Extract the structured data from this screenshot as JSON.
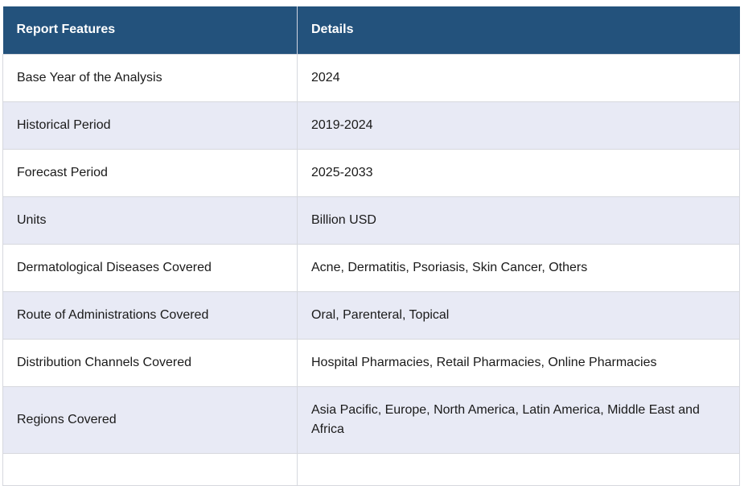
{
  "table": {
    "headers": [
      "Report Features",
      "Details"
    ],
    "rows": [
      [
        "Base Year of the Analysis",
        "2024"
      ],
      [
        "Historical Period",
        "2019-2024"
      ],
      [
        "Forecast Period",
        "2025-2033"
      ],
      [
        "Units",
        "Billion USD"
      ],
      [
        "Dermatological Diseases Covered",
        "Acne, Dermatitis, Psoriasis, Skin Cancer, Others"
      ],
      [
        "Route of Administrations Covered",
        "Oral, Parenteral, Topical"
      ],
      [
        "Distribution Channels Covered",
        "Hospital Pharmacies, Retail Pharmacies, Online Pharmacies"
      ],
      [
        "Regions Covered",
        "Asia Pacific, Europe, North America, Latin America, Middle East and Africa"
      ]
    ]
  },
  "colors": {
    "header_bg": "#23527c",
    "header_text": "#ffffff",
    "row_alt_bg": "#e8eaf5",
    "row_bg": "#ffffff"
  }
}
